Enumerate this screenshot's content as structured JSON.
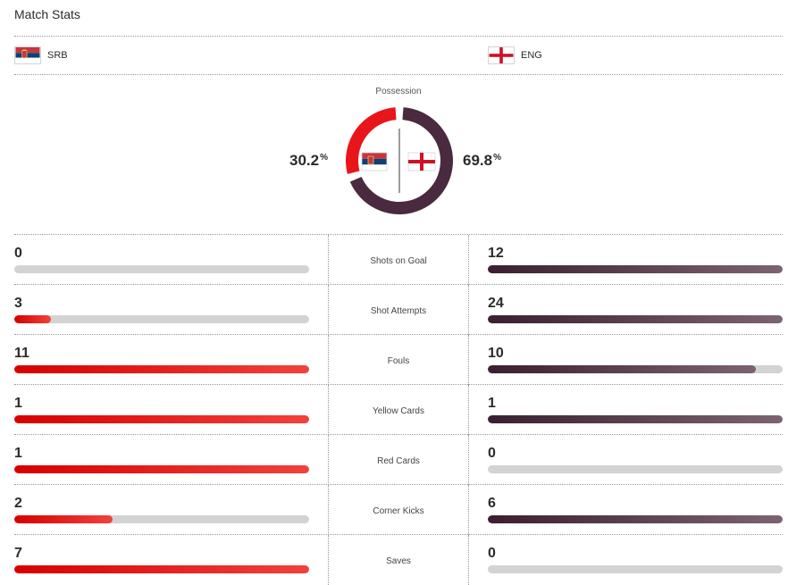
{
  "header": {
    "title": "Match Stats"
  },
  "teams": {
    "home": {
      "abbr": "SRB",
      "flag": "serbia-flag-icon",
      "color": "#e8151b"
    },
    "away": {
      "abbr": "ENG",
      "flag": "england-flag-icon",
      "color": "#4a2a3e"
    }
  },
  "possession": {
    "label": "Possession",
    "home": "30.2",
    "away": "69.8",
    "unit": "%"
  },
  "stats": [
    {
      "label": "Shots on Goal",
      "home": "0",
      "away": "12",
      "home_fill": 0,
      "away_fill": 1
    },
    {
      "label": "Shot Attempts",
      "home": "3",
      "away": "24",
      "home_fill": 0.125,
      "away_fill": 1
    },
    {
      "label": "Fouls",
      "home": "11",
      "away": "10",
      "home_fill": 1,
      "away_fill": 0.909
    },
    {
      "label": "Yellow Cards",
      "home": "1",
      "away": "1",
      "home_fill": 1,
      "away_fill": 1
    },
    {
      "label": "Red Cards",
      "home": "1",
      "away": "0",
      "home_fill": 1,
      "away_fill": 0
    },
    {
      "label": "Corner Kicks",
      "home": "2",
      "away": "6",
      "home_fill": 0.333,
      "away_fill": 1
    },
    {
      "label": "Saves",
      "home": "7",
      "away": "0",
      "home_fill": 1,
      "away_fill": 0
    }
  ]
}
